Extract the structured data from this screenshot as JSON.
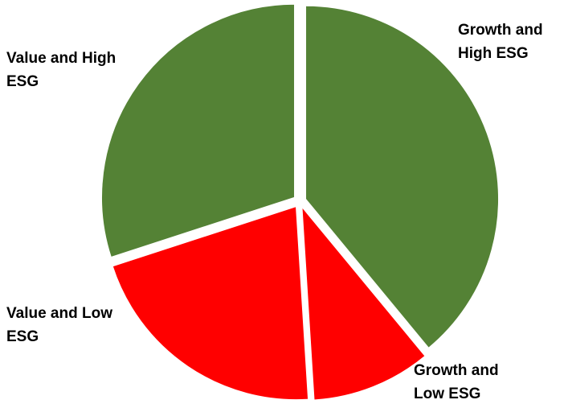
{
  "chart_data": {
    "type": "pie",
    "title": "",
    "slices": [
      {
        "label_lines": [
          "Growth and",
          "High ESG"
        ],
        "value": 39,
        "color": "#548235"
      },
      {
        "label_lines": [
          "Growth and",
          "Low ESG"
        ],
        "value": 10,
        "color": "#ff0000"
      },
      {
        "label_lines": [
          "Value and Low",
          "ESG"
        ],
        "value": 21,
        "color": "#ff0000"
      },
      {
        "label_lines": [
          "Value and High",
          "ESG"
        ],
        "value": 30,
        "color": "#548235"
      }
    ],
    "start_angle": "12 o'clock",
    "direction": "clockwise",
    "exploded": true,
    "legend": "none"
  }
}
